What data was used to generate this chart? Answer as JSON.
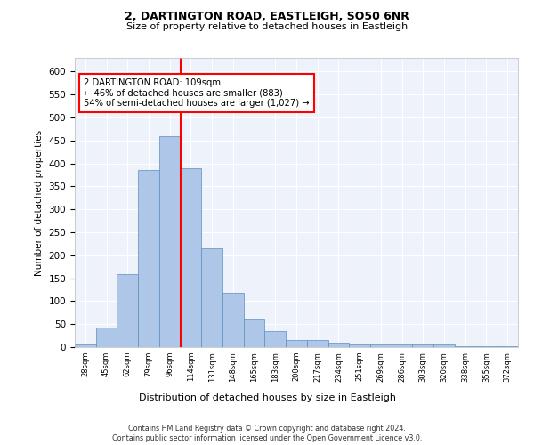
{
  "title_line1": "2, DARTINGTON ROAD, EASTLEIGH, SO50 6NR",
  "title_line2": "Size of property relative to detached houses in Eastleigh",
  "xlabel": "Distribution of detached houses by size in Eastleigh",
  "ylabel": "Number of detached properties",
  "categories": [
    "28sqm",
    "45sqm",
    "62sqm",
    "79sqm",
    "96sqm",
    "114sqm",
    "131sqm",
    "148sqm",
    "165sqm",
    "183sqm",
    "200sqm",
    "217sqm",
    "234sqm",
    "251sqm",
    "269sqm",
    "286sqm",
    "303sqm",
    "320sqm",
    "338sqm",
    "355sqm",
    "372sqm"
  ],
  "values": [
    5,
    42,
    158,
    385,
    460,
    390,
    215,
    118,
    62,
    35,
    15,
    15,
    10,
    5,
    5,
    5,
    5,
    5,
    2,
    2,
    2
  ],
  "bar_color": "#aec6e8",
  "bar_edge_color": "#5a8fc2",
  "vline_index": 5,
  "vline_color": "red",
  "annotation_text": "2 DARTINGTON ROAD: 109sqm\n← 46% of detached houses are smaller (883)\n54% of semi-detached houses are larger (1,027) →",
  "annotation_box_color": "white",
  "annotation_box_edge": "red",
  "ylim": [
    0,
    630
  ],
  "yticks": [
    0,
    50,
    100,
    150,
    200,
    250,
    300,
    350,
    400,
    450,
    500,
    550,
    600
  ],
  "footer": "Contains HM Land Registry data © Crown copyright and database right 2024.\nContains public sector information licensed under the Open Government Licence v3.0.",
  "plot_bg_color": "#eef2fb"
}
